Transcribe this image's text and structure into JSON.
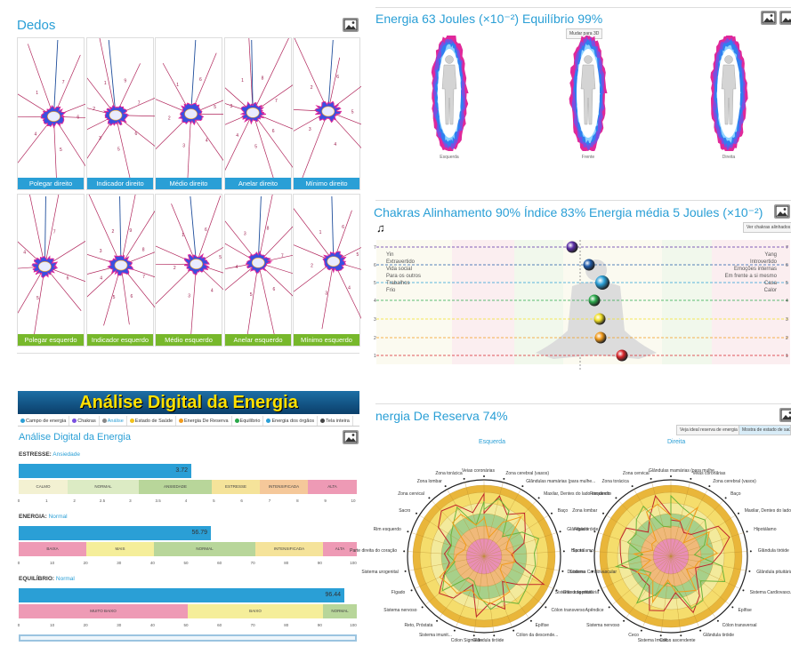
{
  "dedos": {
    "title": "Dedos",
    "fingers": [
      {
        "label": "Polegar direito",
        "row": "top",
        "nums": [
          "7",
          "6",
          "5",
          "4",
          "1"
        ]
      },
      {
        "label": "Indicador direito",
        "row": "top",
        "nums": [
          "9",
          "7",
          "6",
          "5",
          "3",
          "2",
          "1"
        ]
      },
      {
        "label": "Médio direito",
        "row": "top",
        "nums": [
          "6",
          "5",
          "4",
          "3",
          "2",
          "1"
        ]
      },
      {
        "label": "Anelar direito",
        "row": "top",
        "nums": [
          "8",
          "7",
          "6",
          "5",
          "4",
          "3",
          "1"
        ]
      },
      {
        "label": "Mínimo direito",
        "row": "top",
        "nums": [
          "6",
          "5",
          "4",
          "3",
          "2"
        ]
      },
      {
        "label": "Polegar esquerdo",
        "row": "bottom",
        "nums": [
          "7",
          "6",
          "5",
          "4"
        ]
      },
      {
        "label": "Indicador esquerdo",
        "row": "bottom",
        "nums": [
          "9",
          "8",
          "7",
          "6",
          "5",
          "4",
          "3",
          "2"
        ]
      },
      {
        "label": "Médio esquerdo",
        "row": "bottom",
        "nums": [
          "6",
          "5",
          "4",
          "3",
          "2",
          "1"
        ]
      },
      {
        "label": "Anelar esquerdo",
        "row": "bottom",
        "nums": [
          "8",
          "7",
          "6",
          "5",
          "4",
          "3"
        ]
      },
      {
        "label": "Mínimo esquerdo",
        "row": "bottom",
        "nums": [
          "6",
          "5",
          "4",
          "3",
          "2",
          "1"
        ]
      }
    ]
  },
  "energia": {
    "title": "Energia 63 Joules (×10⁻²) Equilíbrio 99%",
    "button": "Mudar para 3D",
    "views": [
      "Esquerda",
      "Frente",
      "Direita"
    ]
  },
  "chakras": {
    "title": "Chakras Alinhamento 90% Índice 83% Energia média 5 Joules (×10⁻²)",
    "button": "Ver chakras alinhados",
    "left_labels": [
      "Yin",
      "Extravertido",
      "Vida social",
      "Para os outros",
      "Trabalhos",
      "Frio"
    ],
    "right_labels": [
      "Yang",
      "Introvertido",
      "Emoções internas",
      "Em frente a si mesmo",
      "Casa",
      "Calor"
    ],
    "levels": [
      "7",
      "6",
      "5",
      "4",
      "3",
      "2",
      "1"
    ],
    "colors": [
      "#5b2ea6",
      "#1f5aa8",
      "#2a9fd6",
      "#2aa84a",
      "#f2e026",
      "#f29b1b",
      "#d9262b"
    ]
  },
  "analise": {
    "banner": "Análise Digital da Energia",
    "tabs": [
      "Campo de energia",
      "Chakras",
      "Análise",
      "Estado de Saúde",
      "Energia De Reserva",
      "Equilíbrio",
      "Energia dos órgãos",
      "Tela inteira"
    ],
    "title": "Análise Digital da Energia",
    "stress": {
      "label": "ESTRESSE:",
      "status": "Ansiedade",
      "value": "3.72",
      "segments": [
        "CALMO",
        "NORMAL",
        "ANSIEDADE",
        "ESTRESSE",
        "INTENSIFICADA",
        "ALTA"
      ],
      "ticks": [
        "0",
        "1",
        "2",
        "2.5",
        "3",
        "3.5",
        "4",
        "5",
        "6",
        "7",
        "8",
        "9",
        "10"
      ]
    },
    "energy": {
      "label": "ENERGIA:",
      "status": "Normal",
      "value": "56.79",
      "segments": [
        "BAIXA",
        "MAIS",
        "NORMAL",
        "INTENSIFICADA",
        "ALTA"
      ],
      "ticks": [
        "0",
        "10",
        "20",
        "30",
        "40",
        "50",
        "60",
        "70",
        "80",
        "90",
        "100"
      ]
    },
    "balance": {
      "label": "EQUILÍBRIO:",
      "status": "Normal",
      "value": "96.44",
      "segments": [
        "MUITO BAIXO",
        "BAIXO",
        "NORMAL"
      ],
      "ticks": [
        "0",
        "10",
        "20",
        "30",
        "40",
        "50",
        "60",
        "70",
        "80",
        "90",
        "100"
      ]
    }
  },
  "reserva": {
    "title": "nergia De Reserva 74%",
    "buttons": [
      "Veja ideal reserva de energia",
      "Mostra de estado de saú"
    ],
    "left_title": "Esquerda",
    "right_title": "Direita",
    "left_labels": [
      "Veias coronárias",
      "Zona cerebral (vasos)",
      "Glândulas mamárias (para mulhe...",
      "Maxilar, Dentes do lado esquerdo",
      "Baço",
      "Glândula tiróide",
      "Hipotálamo",
      "Sistema Cardiovascular",
      "Glândula pituitária",
      "Cólon transverso",
      "Epífise",
      "Cólon da descende...",
      "Glândula tiróide",
      "Cólon Sigmóide",
      "Sistema imunit...",
      "Reto, Próstata",
      "Sistema nervoso",
      "Fígado",
      "Sistema urogenital",
      "Parte direita do coração",
      "Rim esquerdo",
      "Sacro",
      "Zona cervical",
      "Zona lombar",
      "Zona torácica"
    ],
    "right_labels": [
      "Glândulas mamárias (para mulhe...",
      "Veias coronárias",
      "Zona cerebral (vasos)",
      "Baço",
      "Maxilar, Dentes do lado esquerdo",
      "Hipotálamo",
      "Glândula tiróide",
      "Glândula pituitária",
      "Sistema Cardiovascular",
      "Epífise",
      "Cólon transversal",
      "Glândula tiróide",
      "Cólon ascendente",
      "Sistema Imunit...",
      "Ceco",
      "Sistema nervoso",
      "Apêndice",
      "Sistema urogenital",
      "Duodeno",
      "Sacro",
      "Fígado",
      "Zona lombar",
      "Rim direito",
      "Zona torácica",
      "Zona cervical"
    ]
  }
}
